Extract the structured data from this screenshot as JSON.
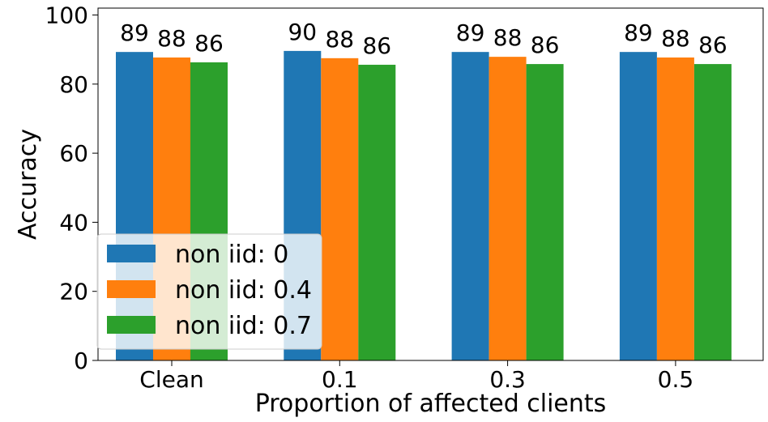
{
  "chart_data": {
    "type": "bar",
    "title": "",
    "xlabel": "Proportion of affected clients",
    "ylabel": "Accuracy",
    "categories": [
      "Clean",
      "0.1",
      "0.3",
      "0.5"
    ],
    "ylim": [
      0,
      102
    ],
    "yticks": [
      0,
      20,
      40,
      60,
      80,
      100
    ],
    "grid": false,
    "legend_position": "lower-left",
    "series": [
      {
        "name": "non iid: 0",
        "color": "#1f77b4",
        "values": [
          89.3,
          89.6,
          89.3,
          89.3
        ],
        "labels": [
          "89",
          "90",
          "89",
          "89"
        ]
      },
      {
        "name": "non iid: 0.4",
        "color": "#ff7f0e",
        "values": [
          87.7,
          87.5,
          87.9,
          87.7
        ],
        "labels": [
          "88",
          "88",
          "88",
          "88"
        ]
      },
      {
        "name": "non iid: 0.7",
        "color": "#2ca02c",
        "values": [
          86.3,
          85.6,
          85.8,
          85.8
        ],
        "labels": [
          "86",
          "86",
          "86",
          "86"
        ]
      }
    ]
  }
}
